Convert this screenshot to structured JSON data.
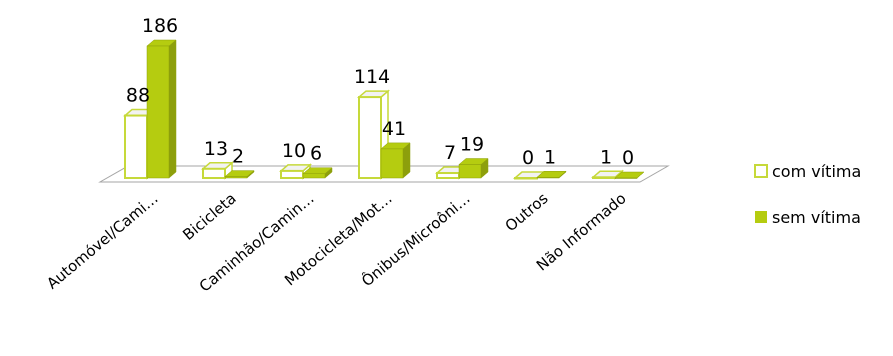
{
  "chart_data": {
    "type": "bar",
    "categories": [
      "Automóvel/Cami…",
      "Bicicleta",
      "Caminhão/Camin…",
      "Motocicleta/Mot…",
      "Ônibus/Microôni…",
      "Outros",
      "Não Informado"
    ],
    "series": [
      {
        "name": "com vítima",
        "values": [
          88,
          13,
          10,
          114,
          7,
          0,
          1
        ],
        "color": "#ffffff",
        "stroke": "#c6d93a"
      },
      {
        "name": "sem vítima",
        "values": [
          186,
          2,
          6,
          41,
          19,
          1,
          0
        ],
        "color": "#b5cc10",
        "stroke": "#8ea00a"
      }
    ],
    "legend_position": "right",
    "grid": false,
    "three_d": true
  }
}
